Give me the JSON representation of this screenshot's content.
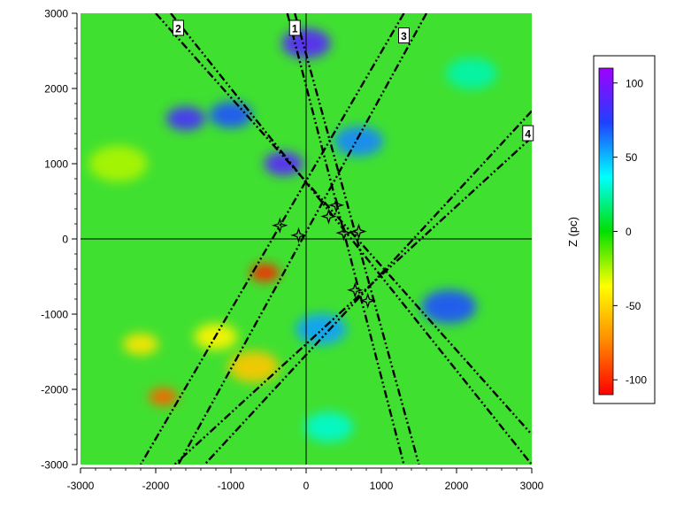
{
  "chart_data": {
    "type": "heatmap",
    "title": "",
    "xlabel": "",
    "ylabel": "",
    "xlim": [
      -3000,
      3000
    ],
    "ylim": [
      -3000,
      3000
    ],
    "x_ticks": [
      -3000,
      -2000,
      -1000,
      0,
      1000,
      2000,
      3000
    ],
    "y_ticks": [
      -3000,
      -2000,
      -1000,
      0,
      1000,
      2000,
      3000
    ],
    "grid": false,
    "colorbar": {
      "label": "Z (pc)",
      "range": [
        -110,
        110
      ],
      "ticks": [
        100,
        50,
        0,
        -50,
        -100
      ],
      "colors": [
        "#ff0000",
        "#ff8c00",
        "#ffff00",
        "#00e000",
        "#00ffff",
        "#2040ff",
        "#a000ff"
      ]
    },
    "background_color": "#40e030",
    "blobs": [
      {
        "x": 0,
        "y": 2600,
        "r": 250,
        "z": 90
      },
      {
        "x": -1600,
        "y": 1600,
        "r": 200,
        "z": 85
      },
      {
        "x": -1000,
        "y": 1650,
        "r": 220,
        "z": 70
      },
      {
        "x": -300,
        "y": 1000,
        "r": 200,
        "z": 90
      },
      {
        "x": 700,
        "y": 1300,
        "r": 250,
        "z": 60
      },
      {
        "x": 1900,
        "y": -900,
        "r": 280,
        "z": 70
      },
      {
        "x": 200,
        "y": -1200,
        "r": 260,
        "z": 55
      },
      {
        "x": -550,
        "y": -450,
        "r": 150,
        "z": -100
      },
      {
        "x": -1900,
        "y": -2100,
        "r": 150,
        "z": -85
      },
      {
        "x": -700,
        "y": -1700,
        "r": 260,
        "z": -55
      },
      {
        "x": -2200,
        "y": -1400,
        "r": 180,
        "z": -45
      },
      {
        "x": -1200,
        "y": -1300,
        "r": 220,
        "z": -40
      },
      {
        "x": -2500,
        "y": 1000,
        "r": 300,
        "z": -25
      },
      {
        "x": 300,
        "y": -2500,
        "r": 250,
        "z": 30
      },
      {
        "x": 2200,
        "y": 2200,
        "r": 260,
        "z": 25
      }
    ],
    "lines": [
      {
        "label": "1",
        "from": [
          -250,
          3000
        ],
        "to": [
          1300,
          -3000
        ]
      },
      {
        "label": "1",
        "from": [
          -150,
          3000
        ],
        "to": [
          1500,
          -3000
        ]
      },
      {
        "label": "2",
        "from": [
          -2000,
          3000
        ],
        "to": [
          3000,
          -2600
        ]
      },
      {
        "label": "2",
        "from": [
          -1800,
          3000
        ],
        "to": [
          3000,
          -3000
        ]
      },
      {
        "label": "3",
        "from": [
          1300,
          3000
        ],
        "to": [
          -2200,
          -3000
        ]
      },
      {
        "label": "3",
        "from": [
          1600,
          3000
        ],
        "to": [
          -1700,
          -3000
        ]
      },
      {
        "label": "4",
        "from": [
          3000,
          1700
        ],
        "to": [
          -1350,
          -3000
        ]
      },
      {
        "label": "4",
        "from": [
          3000,
          1350
        ],
        "to": [
          -1750,
          -3000
        ]
      }
    ],
    "line_labels": [
      {
        "text": "1",
        "x": -150,
        "y": 2800
      },
      {
        "text": "2",
        "x": -1700,
        "y": 2800
      },
      {
        "text": "3",
        "x": 1300,
        "y": 2700
      },
      {
        "text": "4",
        "x": 2950,
        "y": 1400
      }
    ],
    "stars": [
      {
        "x": 300,
        "y": 300
      },
      {
        "x": 400,
        "y": 450
      },
      {
        "x": 700,
        "y": 100
      },
      {
        "x": 500,
        "y": 80
      },
      {
        "x": -350,
        "y": 180
      },
      {
        "x": -100,
        "y": 50
      },
      {
        "x": 650,
        "y": -680
      },
      {
        "x": 820,
        "y": -820
      }
    ]
  }
}
